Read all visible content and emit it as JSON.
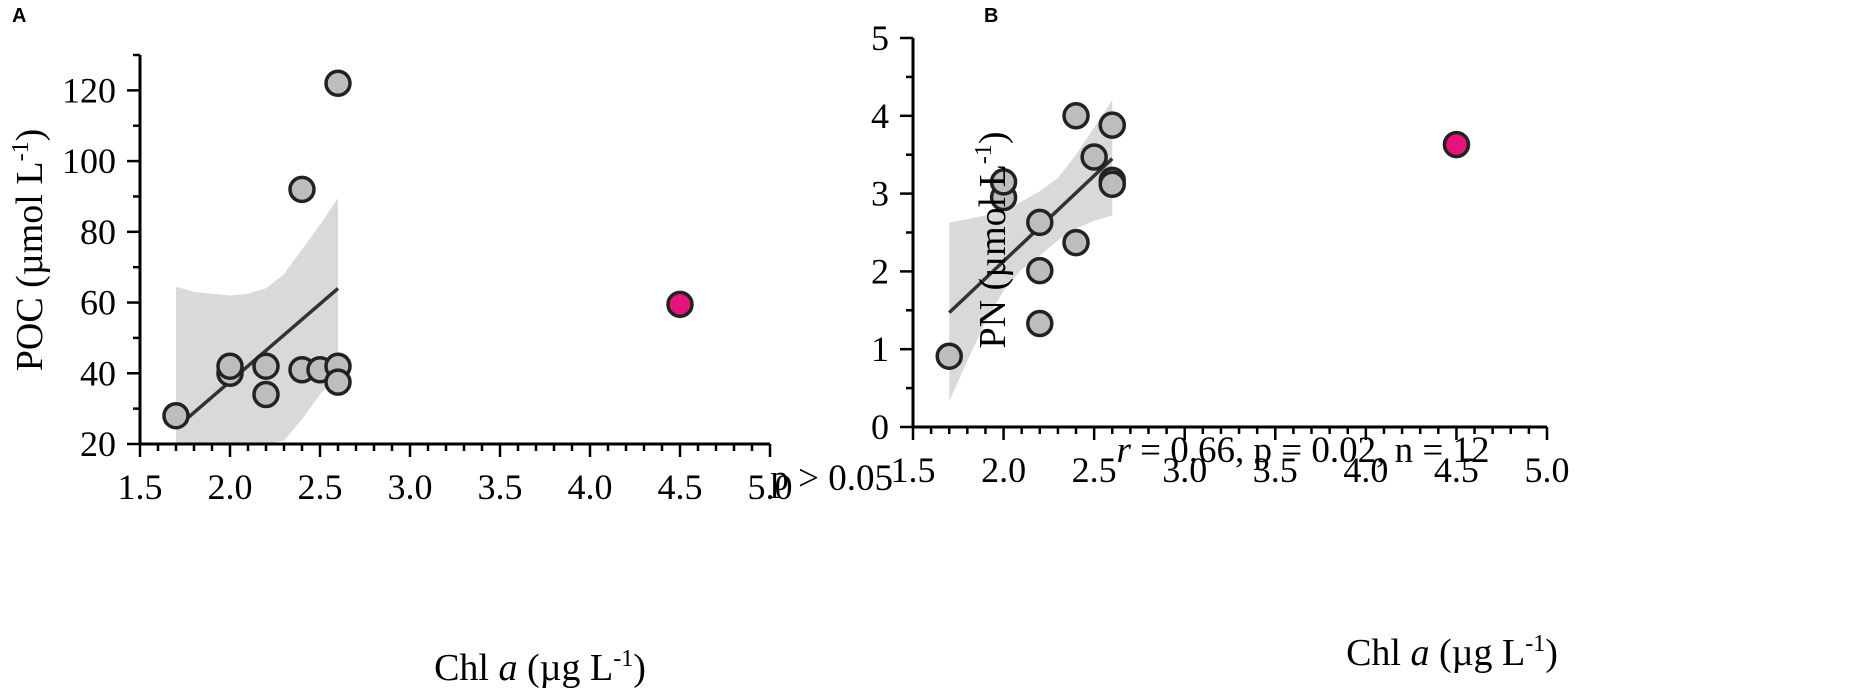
{
  "chart_data": [
    {
      "type": "scatter",
      "panel": "A",
      "xlabel": "Chl a (µg L-1)",
      "xlabel_parts": {
        "pre": "Chl ",
        "italic": "a",
        "mid": " (µg L",
        "sup": "-1",
        "post": ")"
      },
      "ylabel": "POC (µmol L-1)",
      "ylabel_parts": {
        "pre": "POC (µmol L",
        "sup": "-1",
        "post": ")"
      },
      "xlim": [
        1.5,
        5.0
      ],
      "ylim": [
        20,
        130
      ],
      "xticks": [
        "1.5",
        "2.0",
        "2.5",
        "3.0",
        "3.5",
        "4.0",
        "4.5",
        "5.0"
      ],
      "yticks": [
        "20",
        "40",
        "60",
        "80",
        "100",
        "120"
      ],
      "points": [
        {
          "x": 1.7,
          "y": 28
        },
        {
          "x": 2.0,
          "y": 40
        },
        {
          "x": 2.0,
          "y": 42
        },
        {
          "x": 2.2,
          "y": 42
        },
        {
          "x": 2.2,
          "y": 34
        },
        {
          "x": 2.4,
          "y": 92
        },
        {
          "x": 2.4,
          "y": 41
        },
        {
          "x": 2.5,
          "y": 41
        },
        {
          "x": 2.6,
          "y": 122
        },
        {
          "x": 2.6,
          "y": 42
        },
        {
          "x": 2.6,
          "y": 37.5
        }
      ],
      "outlier": {
        "x": 4.5,
        "y": 59.5
      },
      "fit_line": [
        [
          1.7,
          24.5
        ],
        [
          2.6,
          64
        ]
      ],
      "confidence_band": {
        "x": [
          1.7,
          1.8,
          1.9,
          2.0,
          2.1,
          2.2,
          2.3,
          2.4,
          2.5,
          2.6
        ],
        "upper": [
          64.5,
          63,
          62.5,
          62,
          62.5,
          64,
          68,
          75,
          82,
          89.5
        ],
        "lower": [
          20,
          20,
          20,
          20,
          20,
          20,
          21,
          27,
          34,
          40
        ]
      },
      "annotation": "p > 0.05",
      "colors": {
        "points": "#bdbdbd",
        "outlier": "#e4147a",
        "band": "#d9d9d9",
        "line": "#333333"
      }
    },
    {
      "type": "scatter",
      "panel": "B",
      "xlabel": "Chl a (µg L-1)",
      "xlabel_parts": {
        "pre": "Chl ",
        "italic": "a",
        "mid": " (µg L",
        "sup": "-1",
        "post": ")"
      },
      "ylabel": "PN (µmol L-1)",
      "ylabel_parts": {
        "pre": "PN (µmol L",
        "sup": "-1",
        "post": ")"
      },
      "xlim": [
        1.5,
        5.0
      ],
      "ylim": [
        0,
        5
      ],
      "xticks": [
        "1.5",
        "2.0",
        "2.5",
        "3.0",
        "3.5",
        "4.0",
        "4.5",
        "5.0"
      ],
      "yticks": [
        "0",
        "1",
        "2",
        "3",
        "4",
        "5"
      ],
      "points": [
        {
          "x": 1.7,
          "y": 0.91
        },
        {
          "x": 2.0,
          "y": 2.95
        },
        {
          "x": 2.0,
          "y": 3.15
        },
        {
          "x": 2.2,
          "y": 2.63
        },
        {
          "x": 2.2,
          "y": 2.01
        },
        {
          "x": 2.2,
          "y": 1.33
        },
        {
          "x": 2.4,
          "y": 4.0
        },
        {
          "x": 2.4,
          "y": 2.37
        },
        {
          "x": 2.5,
          "y": 3.47
        },
        {
          "x": 2.6,
          "y": 3.88
        },
        {
          "x": 2.6,
          "y": 3.17
        },
        {
          "x": 2.6,
          "y": 3.12
        }
      ],
      "outlier": {
        "x": 4.5,
        "y": 3.63
      },
      "fit_line": [
        [
          1.7,
          1.47
        ],
        [
          2.6,
          3.45
        ]
      ],
      "confidence_band": {
        "x": [
          1.7,
          1.8,
          1.9,
          2.0,
          2.1,
          2.2,
          2.3,
          2.4,
          2.5,
          2.6
        ],
        "upper": [
          2.63,
          2.67,
          2.72,
          2.78,
          2.9,
          3.03,
          3.2,
          3.5,
          3.85,
          4.2
        ],
        "lower": [
          0.33,
          0.85,
          1.35,
          1.75,
          2.03,
          2.2,
          2.4,
          2.55,
          2.65,
          2.72
        ]
      },
      "annotation": {
        "r_italic": "r",
        "rest": " = 0.66, p = 0.02, n = 12"
      },
      "colors": {
        "points": "#bdbdbd",
        "outlier": "#e4147a",
        "band": "#d9d9d9",
        "line": "#333333"
      }
    }
  ]
}
